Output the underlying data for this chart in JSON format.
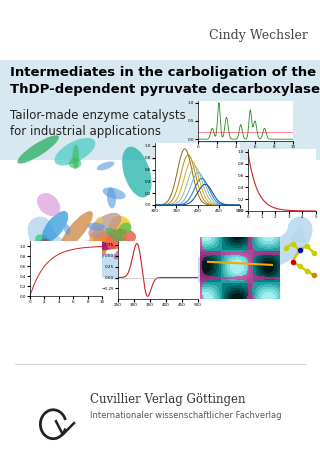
{
  "bg_color": "#ffffff",
  "header_color": "#d8e8f0",
  "author": "Cindy Wechsler",
  "author_fontsize": 9,
  "author_color": "#444444",
  "title_line1": "Intermediates in the carboligation of the",
  "title_line2": "ThDP-dependent pyruvate decarboxylase",
  "title_fontsize": 9.5,
  "title_color": "#000000",
  "subtitle_line1": "Tailor-made enzyme catalysts",
  "subtitle_line2": "for industrial applications",
  "subtitle_fontsize": 8.5,
  "subtitle_color": "#222222",
  "publisher_name": "Cuvillier Verlag Göttingen",
  "publisher_sub": "Internationaler wissenschaftlicher Fachverlag",
  "publisher_fontsize": 8.5,
  "publisher_sub_fontsize": 6.0
}
